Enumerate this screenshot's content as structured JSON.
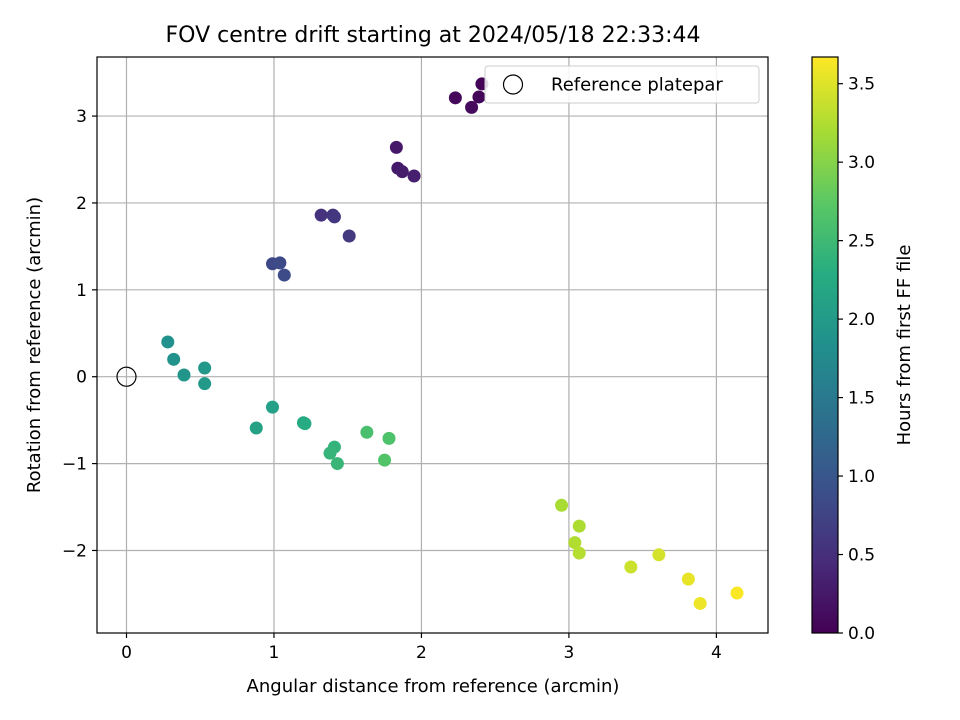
{
  "chart_data": {
    "type": "scatter",
    "title": "FOV centre drift starting at 2024/05/18 22:33:44",
    "xlabel": "Angular distance from reference (arcmin)",
    "ylabel": "Rotation from reference (arcmin)",
    "xlim": [
      -0.2,
      4.35
    ],
    "ylim": [
      -2.95,
      3.68
    ],
    "xticks": [
      0,
      1,
      2,
      3,
      4
    ],
    "yticks": [
      -2,
      -1,
      0,
      1,
      2,
      3
    ],
    "xtick_labels": [
      "0",
      "1",
      "2",
      "3",
      "4"
    ],
    "ytick_labels": [
      "−2",
      "−1",
      "0",
      "1",
      "2",
      "3"
    ],
    "grid": true,
    "legend": {
      "placement": "top-right",
      "entries": [
        "Reference platepar"
      ]
    },
    "reference_point": {
      "x": 0,
      "y": 0
    },
    "colorbar": {
      "label": "Hours from first FF file",
      "colormap": "viridis",
      "range": [
        0,
        3.67
      ],
      "ticks": [
        0.0,
        0.5,
        1.0,
        1.5,
        2.0,
        2.5,
        3.0,
        3.5
      ],
      "tick_labels": [
        "0.0",
        "0.5",
        "1.0",
        "1.5",
        "2.0",
        "2.5",
        "3.0",
        "3.5"
      ]
    },
    "points": [
      {
        "x": 2.41,
        "y": 3.37,
        "h": 0.02
      },
      {
        "x": 2.39,
        "y": 3.22,
        "h": 0.05
      },
      {
        "x": 2.23,
        "y": 3.21,
        "h": 0.08
      },
      {
        "x": 2.34,
        "y": 3.1,
        "h": 0.1
      },
      {
        "x": 1.83,
        "y": 2.64,
        "h": 0.25
      },
      {
        "x": 1.84,
        "y": 2.4,
        "h": 0.27
      },
      {
        "x": 1.87,
        "y": 2.36,
        "h": 0.3
      },
      {
        "x": 1.95,
        "y": 2.31,
        "h": 0.33
      },
      {
        "x": 1.32,
        "y": 1.86,
        "h": 0.55
      },
      {
        "x": 1.4,
        "y": 1.86,
        "h": 0.57
      },
      {
        "x": 1.41,
        "y": 1.84,
        "h": 0.6
      },
      {
        "x": 1.51,
        "y": 1.62,
        "h": 0.63
      },
      {
        "x": 0.99,
        "y": 1.3,
        "h": 0.8
      },
      {
        "x": 1.04,
        "y": 1.31,
        "h": 0.83
      },
      {
        "x": 1.07,
        "y": 1.17,
        "h": 0.86
      },
      {
        "x": 0.28,
        "y": 0.4,
        "h": 1.85
      },
      {
        "x": 0.32,
        "y": 0.2,
        "h": 1.88
      },
      {
        "x": 0.39,
        "y": 0.02,
        "h": 1.92
      },
      {
        "x": 0.53,
        "y": 0.1,
        "h": 1.95
      },
      {
        "x": 0.53,
        "y": -0.08,
        "h": 1.98
      },
      {
        "x": 0.99,
        "y": -0.35,
        "h": 2.1
      },
      {
        "x": 0.88,
        "y": -0.59,
        "h": 2.12
      },
      {
        "x": 1.2,
        "y": -0.53,
        "h": 2.25
      },
      {
        "x": 1.21,
        "y": -0.54,
        "h": 2.27
      },
      {
        "x": 1.41,
        "y": -0.81,
        "h": 2.4
      },
      {
        "x": 1.38,
        "y": -0.88,
        "h": 2.42
      },
      {
        "x": 1.43,
        "y": -1.0,
        "h": 2.45
      },
      {
        "x": 1.63,
        "y": -0.64,
        "h": 2.6
      },
      {
        "x": 1.78,
        "y": -0.71,
        "h": 2.63
      },
      {
        "x": 1.75,
        "y": -0.96,
        "h": 2.66
      },
      {
        "x": 2.95,
        "y": -1.48,
        "h": 3.2
      },
      {
        "x": 3.07,
        "y": -1.72,
        "h": 3.22
      },
      {
        "x": 3.04,
        "y": -1.91,
        "h": 3.25
      },
      {
        "x": 3.07,
        "y": -2.03,
        "h": 3.28
      },
      {
        "x": 3.42,
        "y": -2.19,
        "h": 3.4
      },
      {
        "x": 3.61,
        "y": -2.05,
        "h": 3.45
      },
      {
        "x": 3.81,
        "y": -2.33,
        "h": 3.55
      },
      {
        "x": 3.89,
        "y": -2.61,
        "h": 3.58
      },
      {
        "x": 4.14,
        "y": -2.49,
        "h": 3.65
      }
    ]
  }
}
